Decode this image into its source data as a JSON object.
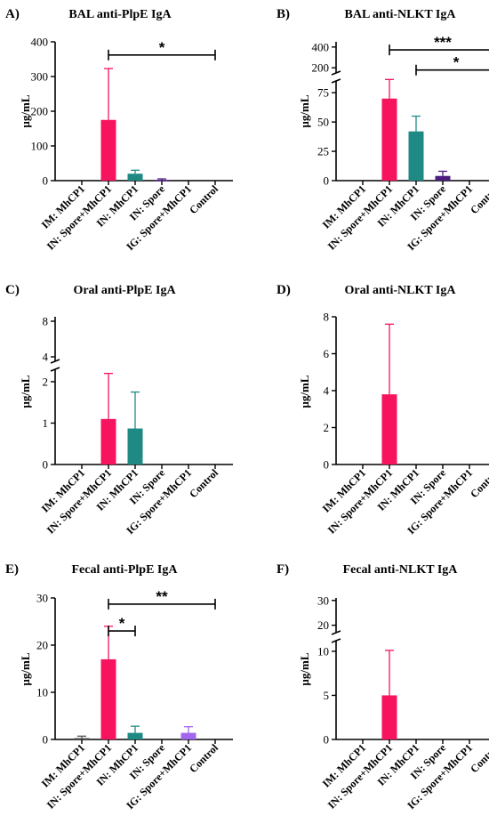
{
  "colors": {
    "IM: MhCP1": "#555555",
    "IN: Spore+MhCP1": "#f7145e",
    "IN: MhCP1": "#1f8a84",
    "IN: Spore": "#4b1c7e",
    "IG: Spore+MhCP1": "#a266ee",
    "Control": "#777777"
  },
  "chart_data": [
    {
      "panel": "A)",
      "title": "BAL anti-PlpE IgA",
      "type": "bar",
      "ylabel": "µg/mL",
      "categories": [
        "IM: MhCP1",
        "IN: Spore+MhCP1",
        "IN: MhCP1",
        "IN: Spore",
        "IG: Spore+MhCP1",
        "Control"
      ],
      "values": [
        0,
        175,
        20,
        2,
        0,
        0
      ],
      "errors": [
        0,
        148,
        10,
        3,
        0,
        0
      ],
      "ylim": [
        0,
        400
      ],
      "yticks": [
        0,
        100,
        200,
        300,
        400
      ],
      "sig": [
        {
          "from": 1,
          "to": 5,
          "label": "*",
          "value": 362
        }
      ]
    },
    {
      "panel": "B)",
      "title": "BAL anti-NLKT IgA",
      "type": "bar",
      "ylabel": "µg/mL",
      "categories": [
        "IM: MhCP1",
        "IN: Spore+MhCP1",
        "IN: MhCP1",
        "IN: Spore",
        "IG: Spore+MhCP1",
        "Control"
      ],
      "values": [
        0,
        70,
        42,
        4,
        0,
        0
      ],
      "errors": [
        0,
        17,
        13,
        4,
        0,
        0
      ],
      "ylim": [
        0,
        400
      ],
      "yticks": [
        0,
        25,
        50,
        75,
        200,
        400
      ],
      "axis_break": {
        "lower": [
          0,
          85
        ],
        "upper": [
          150,
          450
        ]
      },
      "sig": [
        {
          "from": 1,
          "to": 5,
          "label": "***",
          "value": 372
        },
        {
          "from": 2,
          "to": 5,
          "label": "*",
          "value": 178
        }
      ]
    },
    {
      "panel": "C)",
      "title": "Oral anti-PlpE IgA",
      "type": "bar",
      "ylabel": "µg/mL",
      "categories": [
        "IM: MhCP1",
        "IN: Spore+MhCP1",
        "IN: MhCP1",
        "IN: Spore",
        "IG: Spore+MhCP1",
        "Control"
      ],
      "values": [
        0,
        1.1,
        0.87,
        0,
        0,
        0
      ],
      "errors": [
        0,
        1.1,
        0.88,
        0,
        0,
        0
      ],
      "ylim": [
        0,
        8
      ],
      "yticks": [
        0,
        1,
        2,
        4,
        8
      ],
      "axis_break": {
        "lower": [
          0,
          2.3
        ],
        "upper": [
          3.5,
          8.5
        ]
      },
      "sig": []
    },
    {
      "panel": "D)",
      "title": "Oral anti-NLKT IgA",
      "type": "bar",
      "ylabel": "µg/mL",
      "categories": [
        "IM: MhCP1",
        "IN: Spore+MhCP1",
        "IN: MhCP1",
        "IN: Spore",
        "IG: Spore+MhCP1",
        "Control"
      ],
      "values": [
        0,
        3.8,
        0,
        0,
        0,
        0
      ],
      "errors": [
        0,
        3.8,
        0,
        0,
        0,
        0
      ],
      "ylim": [
        0,
        8
      ],
      "yticks": [
        0,
        2,
        4,
        6,
        8
      ],
      "sig": []
    },
    {
      "panel": "E)",
      "title": "Fecal anti-PlpE IgA",
      "type": "bar",
      "ylabel": "µg/mL",
      "categories": [
        "IM: MhCP1",
        "IN: Spore+MhCP1",
        "IN: MhCP1",
        "IN: Spore",
        "IG: Spore+MhCP1",
        "Control"
      ],
      "values": [
        0.3,
        17,
        1.4,
        0,
        1.4,
        0
      ],
      "errors": [
        0.4,
        7,
        1.4,
        0,
        1.3,
        0
      ],
      "ylim": [
        0,
        30
      ],
      "yticks": [
        0,
        10,
        20,
        30
      ],
      "sig": [
        {
          "from": 1,
          "to": 5,
          "label": "**",
          "value": 28.7
        },
        {
          "from": 1,
          "to": 2,
          "label": "*",
          "value": 23
        }
      ]
    },
    {
      "panel": "F)",
      "title": "Fecal anti-NLKT IgA",
      "type": "bar",
      "ylabel": "µg/mL",
      "categories": [
        "IM: MhCP1",
        "IN: Spore+MhCP1",
        "IN: MhCP1",
        "IN: Spore",
        "IG: Spore+MhCP1",
        "Control"
      ],
      "values": [
        0,
        5,
        0,
        0,
        0,
        0
      ],
      "errors": [
        0,
        5.1,
        0,
        0,
        0,
        0
      ],
      "ylim": [
        0,
        30
      ],
      "yticks": [
        0,
        5,
        10,
        20,
        30
      ],
      "axis_break": {
        "lower": [
          0,
          11.2
        ],
        "upper": [
          17,
          31
        ]
      },
      "sig": []
    }
  ]
}
